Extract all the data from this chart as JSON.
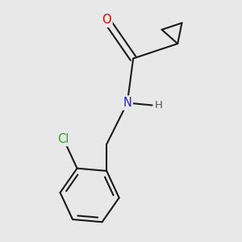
{
  "background_color": "#e8e8e8",
  "bond_color": "#1a1a1a",
  "atom_colors": {
    "O": "#dd0000",
    "N": "#2222cc",
    "Cl": "#22aa22",
    "H": "#555555"
  },
  "bond_width": 1.5,
  "font_size_atoms": 10.5,
  "font_size_H": 9.5
}
